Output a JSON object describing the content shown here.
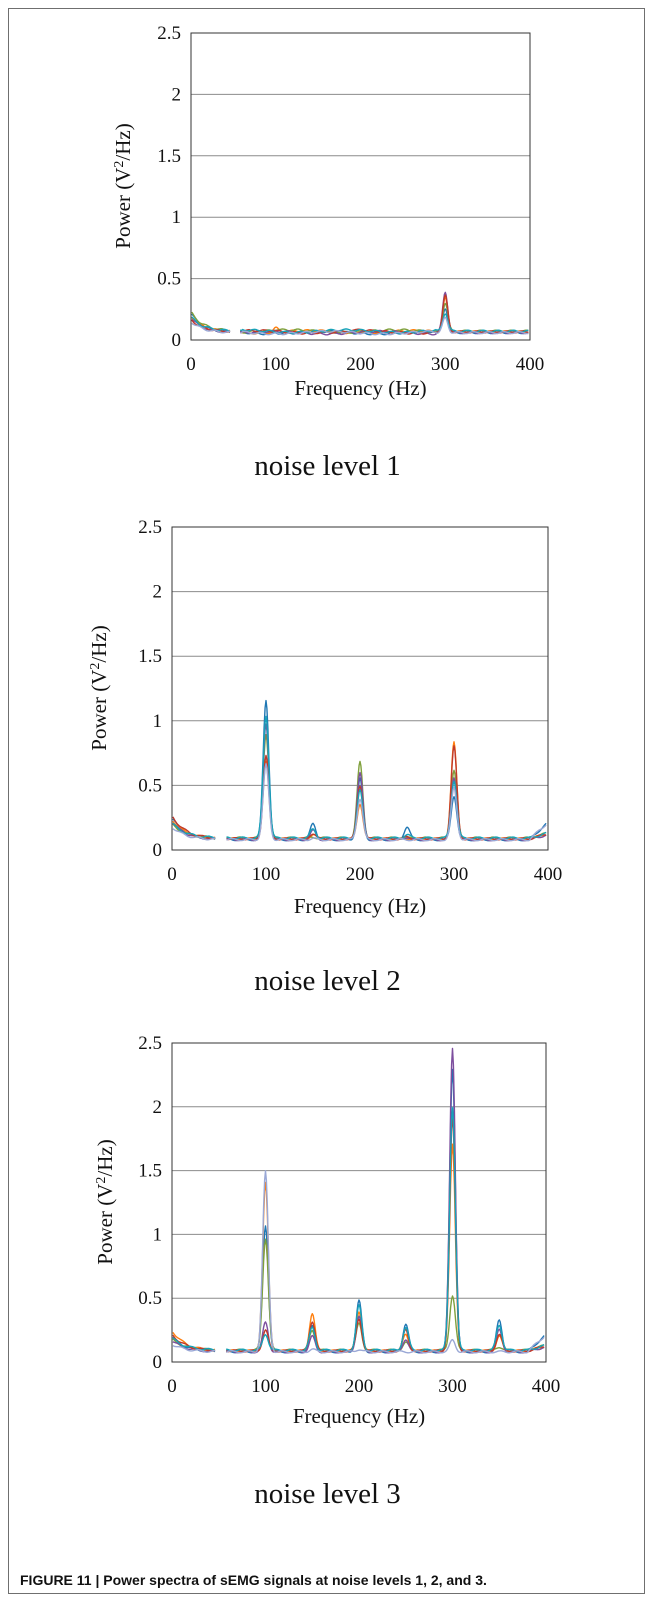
{
  "caption": "FIGURE 11 | Power spectra of sEMG signals at noise levels 1, 2, and 3.",
  "chart_data": [
    {
      "type": "line",
      "panel_label": "noise level 1",
      "xlabel": "Frequency (Hz)",
      "ylabel_main": "Power (V",
      "ylabel_sup": "2",
      "ylabel_end": "/Hz)",
      "xlim": [
        0,
        400
      ],
      "ylim": [
        0,
        2.5
      ],
      "x_ticks": [
        "0",
        "100",
        "200",
        "300",
        "400"
      ],
      "y_ticks": [
        "0",
        "0.5",
        "1",
        "1.5",
        "2",
        "2.5"
      ],
      "grid": "horizontal",
      "baseline": 0.06,
      "series": [
        {
          "color": "#1f77b4",
          "values": {
            "0": 0.22,
            "100": 0.07,
            "150": 0.06,
            "200": 0.06,
            "250": 0.05,
            "300": 0.26,
            "350": 0.03
          }
        },
        {
          "color": "#ff7f0e",
          "values": {
            "0": 0.2,
            "100": 0.1,
            "150": 0.07,
            "200": 0.08,
            "250": 0.05,
            "300": 0.34,
            "350": 0.03
          }
        },
        {
          "color": "#7fa03c",
          "values": {
            "0": 0.23,
            "100": 0.08,
            "150": 0.06,
            "200": 0.07,
            "250": 0.05,
            "300": 0.3,
            "350": 0.03
          }
        },
        {
          "color": "#7d4e9e",
          "values": {
            "0": 0.18,
            "100": 0.06,
            "150": 0.06,
            "200": 0.06,
            "250": 0.05,
            "300": 0.39,
            "350": 0.03
          }
        },
        {
          "color": "#c0392b",
          "values": {
            "0": 0.17,
            "100": 0.07,
            "150": 0.07,
            "200": 0.08,
            "250": 0.05,
            "300": 0.36,
            "350": 0.03
          }
        },
        {
          "color": "#17a2b8",
          "values": {
            "0": 0.19,
            "100": 0.06,
            "150": 0.06,
            "200": 0.05,
            "250": 0.05,
            "300": 0.22,
            "350": 0.03
          }
        },
        {
          "color": "#9aa8d6",
          "values": {
            "0": 0.15,
            "100": 0.05,
            "150": 0.05,
            "200": 0.05,
            "250": 0.04,
            "300": 0.18,
            "350": 0.03
          }
        }
      ]
    },
    {
      "type": "line",
      "panel_label": "noise level 2",
      "xlabel": "Frequency (Hz)",
      "ylabel_main": "Power (V",
      "ylabel_sup": "2",
      "ylabel_end": "/Hz)",
      "xlim": [
        0,
        400
      ],
      "ylim": [
        0,
        2.5
      ],
      "x_ticks": [
        "0",
        "100",
        "200",
        "300",
        "400"
      ],
      "y_ticks": [
        "0",
        "0.5",
        "1",
        "1.5",
        "2",
        "2.5"
      ],
      "grid": "horizontal",
      "baseline": 0.08,
      "series": [
        {
          "color": "#1f77b4",
          "values": {
            "0": 0.25,
            "100": 1.16,
            "150": 0.2,
            "200": 0.55,
            "250": 0.18,
            "300": 0.42,
            "350": 0.07
          }
        },
        {
          "color": "#ff7f0e",
          "values": {
            "0": 0.24,
            "100": 0.68,
            "150": 0.12,
            "200": 0.36,
            "250": 0.08,
            "300": 0.83,
            "350": 0.06
          }
        },
        {
          "color": "#7fa03c",
          "values": {
            "0": 0.2,
            "100": 0.9,
            "150": 0.1,
            "200": 0.68,
            "250": 0.09,
            "300": 0.62,
            "350": 0.06
          }
        },
        {
          "color": "#7d4e9e",
          "values": {
            "0": 0.22,
            "100": 0.97,
            "150": 0.15,
            "200": 0.6,
            "250": 0.1,
            "300": 0.56,
            "350": 0.06
          }
        },
        {
          "color": "#c0392b",
          "values": {
            "0": 0.27,
            "100": 0.73,
            "150": 0.13,
            "200": 0.5,
            "250": 0.1,
            "300": 0.8,
            "350": 0.06
          }
        },
        {
          "color": "#17a2b8",
          "values": {
            "0": 0.21,
            "100": 1.04,
            "150": 0.16,
            "200": 0.46,
            "250": 0.12,
            "300": 0.54,
            "350": 0.07
          }
        },
        {
          "color": "#9aa8d6",
          "values": {
            "0": 0.18,
            "100": 0.66,
            "150": 0.09,
            "200": 0.4,
            "250": 0.08,
            "300": 0.48,
            "350": 0.05
          }
        }
      ]
    },
    {
      "type": "line",
      "panel_label": "noise level 3",
      "xlabel": "Frequency (Hz)",
      "ylabel_main": "Power (V",
      "ylabel_sup": "2",
      "ylabel_end": "/Hz)",
      "xlim": [
        0,
        400
      ],
      "ylim": [
        0,
        2.5
      ],
      "x_ticks": [
        "0",
        "100",
        "200",
        "300",
        "400"
      ],
      "y_ticks": [
        "0",
        "0.5",
        "1",
        "1.5",
        "2",
        "2.5"
      ],
      "grid": "horizontal",
      "baseline": 0.08,
      "series": [
        {
          "color": "#1f77b4",
          "values": {
            "0": 0.2,
            "100": 1.07,
            "150": 0.28,
            "200": 0.48,
            "250": 0.3,
            "300": 2.3,
            "350": 0.33
          }
        },
        {
          "color": "#ff7f0e",
          "values": {
            "0": 0.25,
            "100": 1.4,
            "150": 0.38,
            "200": 0.4,
            "250": 0.22,
            "300": 1.7,
            "350": 0.2
          }
        },
        {
          "color": "#7fa03c",
          "values": {
            "0": 0.18,
            "100": 0.97,
            "150": 0.25,
            "200": 0.3,
            "250": 0.15,
            "300": 0.52,
            "350": 0.12
          }
        },
        {
          "color": "#7d4e9e",
          "values": {
            "0": 0.17,
            "100": 0.31,
            "150": 0.2,
            "200": 0.36,
            "250": 0.18,
            "300": 2.46,
            "350": 0.25
          }
        },
        {
          "color": "#c0392b",
          "values": {
            "0": 0.22,
            "100": 0.25,
            "150": 0.32,
            "200": 0.34,
            "250": 0.25,
            "300": 1.92,
            "350": 0.22
          }
        },
        {
          "color": "#17a2b8",
          "values": {
            "0": 0.19,
            "100": 0.22,
            "150": 0.27,
            "200": 0.44,
            "250": 0.27,
            "300": 2.0,
            "350": 0.29
          }
        },
        {
          "color": "#9aa8d6",
          "values": {
            "0": 0.14,
            "100": 1.49,
            "150": 0.1,
            "200": 0.1,
            "250": 0.08,
            "300": 0.17,
            "350": 0.07
          }
        }
      ]
    }
  ]
}
